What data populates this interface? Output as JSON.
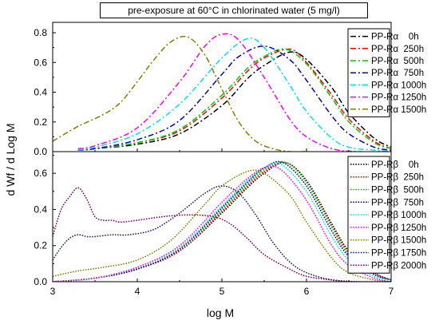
{
  "figure": {
    "title": "pre-exposure at 60°C in chlorinated water (5 mg/l)",
    "xlabel": "log M",
    "ylabel": "d Wf / d Log M"
  },
  "chart_data": [
    {
      "type": "line",
      "panel": "top",
      "xlabel": "log M",
      "ylabel": "d Wf / d Log M",
      "xlim": [
        3,
        7
      ],
      "ylim": [
        0,
        0.87
      ],
      "x_ticks": [
        3,
        4,
        5,
        6,
        7
      ],
      "y_ticks": [
        0.0,
        0.2,
        0.4,
        0.6,
        0.8
      ],
      "legend_position": "top-right",
      "series": [
        {
          "name": "PP-Rα    0h",
          "color": "#000000",
          "dash": "dashdot",
          "x": [
            3.3,
            3.5,
            4.0,
            4.5,
            5.0,
            5.3,
            5.5,
            5.8,
            6.0,
            6.3,
            6.5,
            6.8,
            7.0
          ],
          "y": [
            0.01,
            0.02,
            0.05,
            0.12,
            0.31,
            0.49,
            0.58,
            0.67,
            0.62,
            0.43,
            0.26,
            0.09,
            0.03
          ]
        },
        {
          "name": "PP-Rα  250h",
          "color": "#ff0000",
          "dash": "dashdot",
          "x": [
            3.3,
            3.5,
            4.0,
            4.5,
            5.0,
            5.3,
            5.5,
            5.8,
            6.0,
            6.3,
            6.5,
            6.8,
            7.0
          ],
          "y": [
            0.01,
            0.02,
            0.06,
            0.14,
            0.36,
            0.54,
            0.63,
            0.69,
            0.6,
            0.38,
            0.22,
            0.07,
            0.02
          ]
        },
        {
          "name": "PP-Rα  500h",
          "color": "#00cc00",
          "dash": "dashdot",
          "x": [
            3.3,
            3.5,
            4.0,
            4.5,
            5.0,
            5.3,
            5.5,
            5.75,
            6.0,
            6.3,
            6.5,
            6.8,
            7.0
          ],
          "y": [
            0.01,
            0.02,
            0.06,
            0.15,
            0.38,
            0.56,
            0.64,
            0.69,
            0.59,
            0.36,
            0.2,
            0.06,
            0.02
          ]
        },
        {
          "name": "PP-Rα  750h",
          "color": "#0000cc",
          "dash": "dashdot",
          "x": [
            3.3,
            3.5,
            4.0,
            4.5,
            5.0,
            5.2,
            5.5,
            5.8,
            6.0,
            6.3,
            6.5,
            6.8,
            7.0
          ],
          "y": [
            0.01,
            0.02,
            0.08,
            0.21,
            0.52,
            0.64,
            0.71,
            0.62,
            0.48,
            0.24,
            0.12,
            0.03,
            0.01
          ]
        },
        {
          "name": "PP-Rα 1000h",
          "color": "#00e5e5",
          "dash": "dashdot",
          "x": [
            3.3,
            3.5,
            4.0,
            4.5,
            5.0,
            5.3,
            5.5,
            5.8,
            6.0,
            6.3,
            6.5,
            6.8,
            7.0
          ],
          "y": [
            0.01,
            0.03,
            0.12,
            0.32,
            0.63,
            0.76,
            0.7,
            0.45,
            0.27,
            0.09,
            0.03,
            0.01,
            0.0
          ]
        },
        {
          "name": "PP-Rα 1250h",
          "color": "#ff00ff",
          "dash": "dashdot",
          "x": [
            3.3,
            3.5,
            4.0,
            4.5,
            4.8,
            5.0,
            5.2,
            5.5,
            5.8,
            6.0,
            6.3,
            6.6,
            7.0
          ],
          "y": [
            0.02,
            0.04,
            0.16,
            0.47,
            0.71,
            0.79,
            0.75,
            0.5,
            0.22,
            0.1,
            0.02,
            0.0,
            0.0
          ]
        },
        {
          "name": "PP-Rα 1500h",
          "color": "#808000",
          "dash": "dashdot",
          "x": [
            3.0,
            3.3,
            3.6,
            3.8,
            4.0,
            4.2,
            4.4,
            4.6,
            4.8,
            5.0,
            5.2,
            5.4,
            5.6,
            5.8,
            6.0
          ],
          "y": [
            0.07,
            0.17,
            0.25,
            0.33,
            0.47,
            0.62,
            0.74,
            0.77,
            0.65,
            0.42,
            0.2,
            0.07,
            0.02,
            0.0,
            0.0
          ]
        }
      ]
    },
    {
      "type": "line",
      "panel": "bottom",
      "xlabel": "log M",
      "ylabel": "d Wf / d Log M",
      "xlim": [
        3,
        7
      ],
      "ylim": [
        0,
        0.72
      ],
      "x_ticks": [
        3,
        4,
        5,
        6,
        7
      ],
      "y_ticks": [
        0.0,
        0.2,
        0.4,
        0.6
      ],
      "legend_position": "top-right",
      "series": [
        {
          "name": "PP-Rβ    0h",
          "color": "#000000",
          "dash": "dotted",
          "x": [
            3.0,
            3.5,
            4.0,
            4.5,
            5.0,
            5.3,
            5.5,
            5.75,
            6.0,
            6.3,
            6.5,
            6.8,
            7.0
          ],
          "y": [
            0.0,
            0.02,
            0.07,
            0.17,
            0.38,
            0.52,
            0.6,
            0.66,
            0.56,
            0.32,
            0.17,
            0.05,
            0.01
          ]
        },
        {
          "name": "PP-Rβ  250h",
          "color": "#ff0000",
          "dash": "dotted",
          "x": [
            3.0,
            3.5,
            4.0,
            4.5,
            5.0,
            5.3,
            5.5,
            5.75,
            6.0,
            6.3,
            6.5,
            6.8,
            7.0
          ],
          "y": [
            0.0,
            0.02,
            0.07,
            0.17,
            0.39,
            0.53,
            0.61,
            0.66,
            0.55,
            0.31,
            0.16,
            0.05,
            0.01
          ]
        },
        {
          "name": "PP-Rβ  500h",
          "color": "#00cc00",
          "dash": "dotted",
          "x": [
            3.0,
            3.5,
            4.0,
            4.5,
            5.0,
            5.3,
            5.5,
            5.75,
            6.0,
            6.3,
            6.5,
            6.8,
            7.0
          ],
          "y": [
            0.0,
            0.02,
            0.07,
            0.18,
            0.4,
            0.54,
            0.62,
            0.66,
            0.55,
            0.3,
            0.15,
            0.04,
            0.01
          ]
        },
        {
          "name": "PP-Rβ  750h",
          "color": "#000099",
          "dash": "dotted",
          "x": [
            3.0,
            3.5,
            4.0,
            4.5,
            5.0,
            5.3,
            5.5,
            5.72,
            6.0,
            6.3,
            6.5,
            6.8,
            7.0
          ],
          "y": [
            0.0,
            0.02,
            0.07,
            0.18,
            0.41,
            0.55,
            0.63,
            0.66,
            0.53,
            0.28,
            0.14,
            0.04,
            0.01
          ]
        },
        {
          "name": "PP-Rβ 1000h",
          "color": "#00e5e5",
          "dash": "dotted",
          "x": [
            3.0,
            3.5,
            4.0,
            4.5,
            5.0,
            5.3,
            5.5,
            5.7,
            6.0,
            6.3,
            6.5,
            6.8,
            7.0
          ],
          "y": [
            0.0,
            0.02,
            0.08,
            0.19,
            0.42,
            0.56,
            0.63,
            0.65,
            0.5,
            0.25,
            0.12,
            0.03,
            0.01
          ]
        },
        {
          "name": "PP-Rβ 1250h",
          "color": "#ff00ff",
          "dash": "dotted",
          "x": [
            3.0,
            3.5,
            4.0,
            4.5,
            5.0,
            5.3,
            5.5,
            5.7,
            6.0,
            6.3,
            6.5,
            6.8,
            7.0
          ],
          "y": [
            0.0,
            0.02,
            0.08,
            0.2,
            0.44,
            0.57,
            0.63,
            0.62,
            0.45,
            0.2,
            0.09,
            0.02,
            0.0
          ]
        },
        {
          "name": "PP-Rβ 1500h",
          "color": "#808000",
          "dash": "dotted",
          "x": [
            3.0,
            3.3,
            3.6,
            4.0,
            4.4,
            4.8,
            5.0,
            5.3,
            5.5,
            5.8,
            6.0,
            6.3,
            6.5,
            6.8,
            7.0
          ],
          "y": [
            0.03,
            0.06,
            0.08,
            0.12,
            0.23,
            0.43,
            0.53,
            0.61,
            0.6,
            0.48,
            0.33,
            0.13,
            0.05,
            0.01,
            0.0
          ]
        },
        {
          "name": "PP-Rβ 1750h",
          "color": "#1a1a80",
          "dash": "dotted",
          "x": [
            3.0,
            3.1,
            3.2,
            3.3,
            3.4,
            3.5,
            3.7,
            3.9,
            4.2,
            4.5,
            4.8,
            5.0,
            5.2,
            5.4,
            5.6,
            5.8,
            6.0,
            6.3,
            6.6,
            7.0
          ],
          "y": [
            0.12,
            0.19,
            0.24,
            0.26,
            0.25,
            0.25,
            0.26,
            0.26,
            0.29,
            0.38,
            0.49,
            0.53,
            0.49,
            0.37,
            0.22,
            0.11,
            0.05,
            0.01,
            0.0,
            0.0
          ]
        },
        {
          "name": "PP-Rβ 2000h",
          "color": "#800060",
          "dash": "dotted",
          "x": [
            3.0,
            3.1,
            3.2,
            3.3,
            3.4,
            3.5,
            3.6,
            3.7,
            3.8,
            4.0,
            4.3,
            4.6,
            4.9,
            5.1,
            5.3,
            5.5,
            5.8,
            6.0,
            6.3,
            6.6,
            7.0
          ],
          "y": [
            0.25,
            0.4,
            0.47,
            0.52,
            0.46,
            0.36,
            0.34,
            0.34,
            0.33,
            0.34,
            0.36,
            0.37,
            0.36,
            0.32,
            0.24,
            0.15,
            0.07,
            0.03,
            0.01,
            0.0,
            0.0
          ]
        }
      ]
    }
  ]
}
